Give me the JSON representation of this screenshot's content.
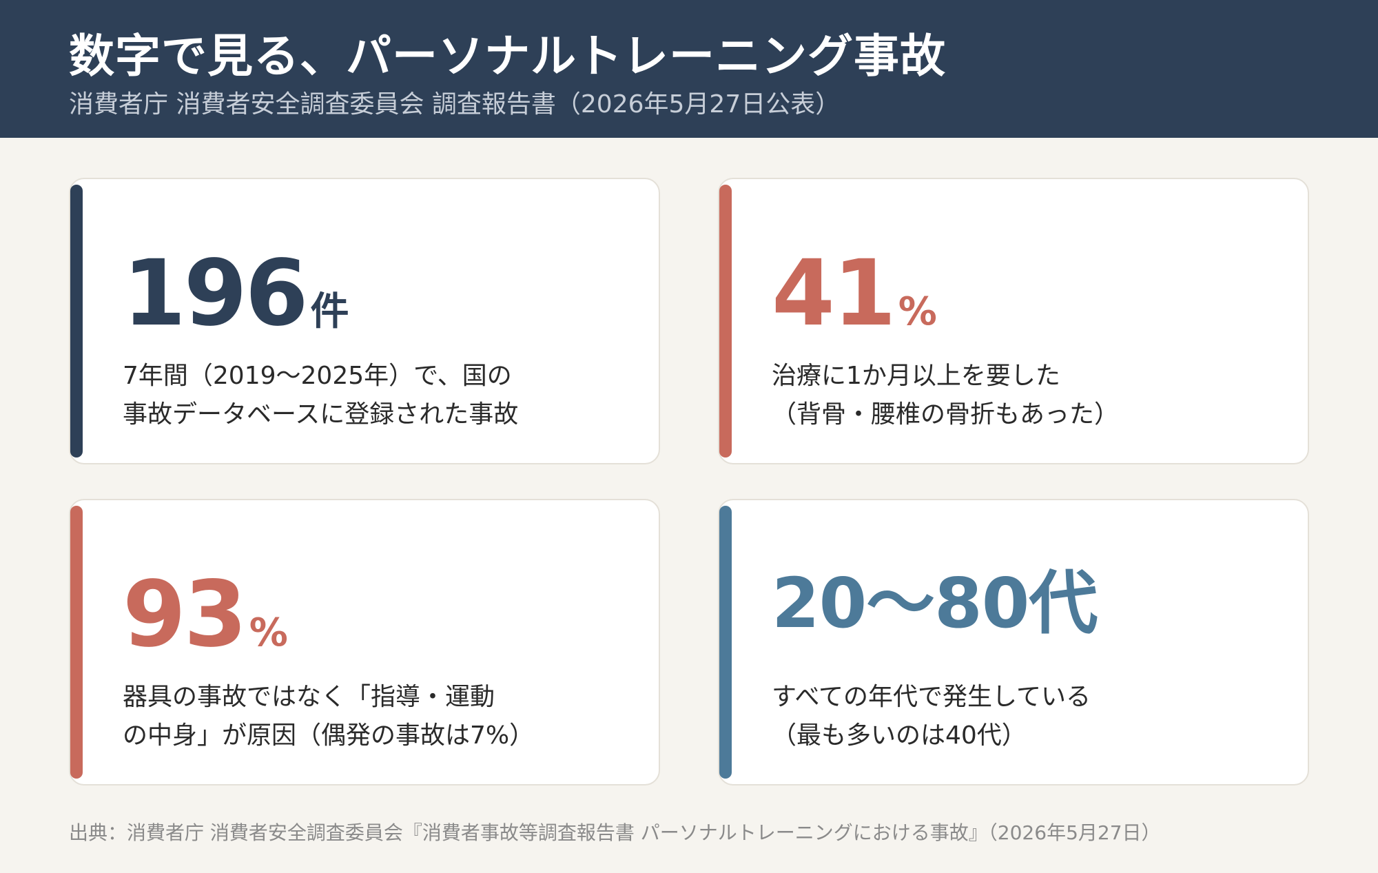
{
  "header": {
    "title": "数字で見る、パーソナルトレーニング事故",
    "subtitle": "消費者庁 消費者安全調査委員会 調査報告書（2026年5月27日公表）"
  },
  "colors": {
    "header_bg": "#2e4057",
    "navy": "#2e4057",
    "coral": "#c86a5c",
    "steel_blue": "#4d7a99"
  },
  "cards": [
    {
      "number": "196",
      "unit": "件",
      "accent": "#2e4057",
      "lines": [
        "7年間（2019〜2025年）で、国の",
        "事故データベースに登録された事故"
      ]
    },
    {
      "number": "41",
      "unit": "%",
      "accent": "#c86a5c",
      "lines": [
        "治療に1か月以上を要した",
        "（背骨・腰椎の骨折もあった）"
      ]
    },
    {
      "number": "93",
      "unit": "%",
      "accent": "#c86a5c",
      "lines": [
        "器具の事故ではなく「指導・運動",
        "の中身」が原因（偶発の事故は7%）"
      ]
    },
    {
      "number": "20〜80代",
      "unit": "",
      "accent": "#4d7a99",
      "lines": [
        "すべての年代で発生している",
        "（最も多いのは40代）"
      ]
    }
  ],
  "footer": {
    "source": "出典：消費者庁 消費者安全調査委員会『消費者事故等調査報告書 パーソナルトレーニングにおける事故』（2026年5月27日）"
  }
}
